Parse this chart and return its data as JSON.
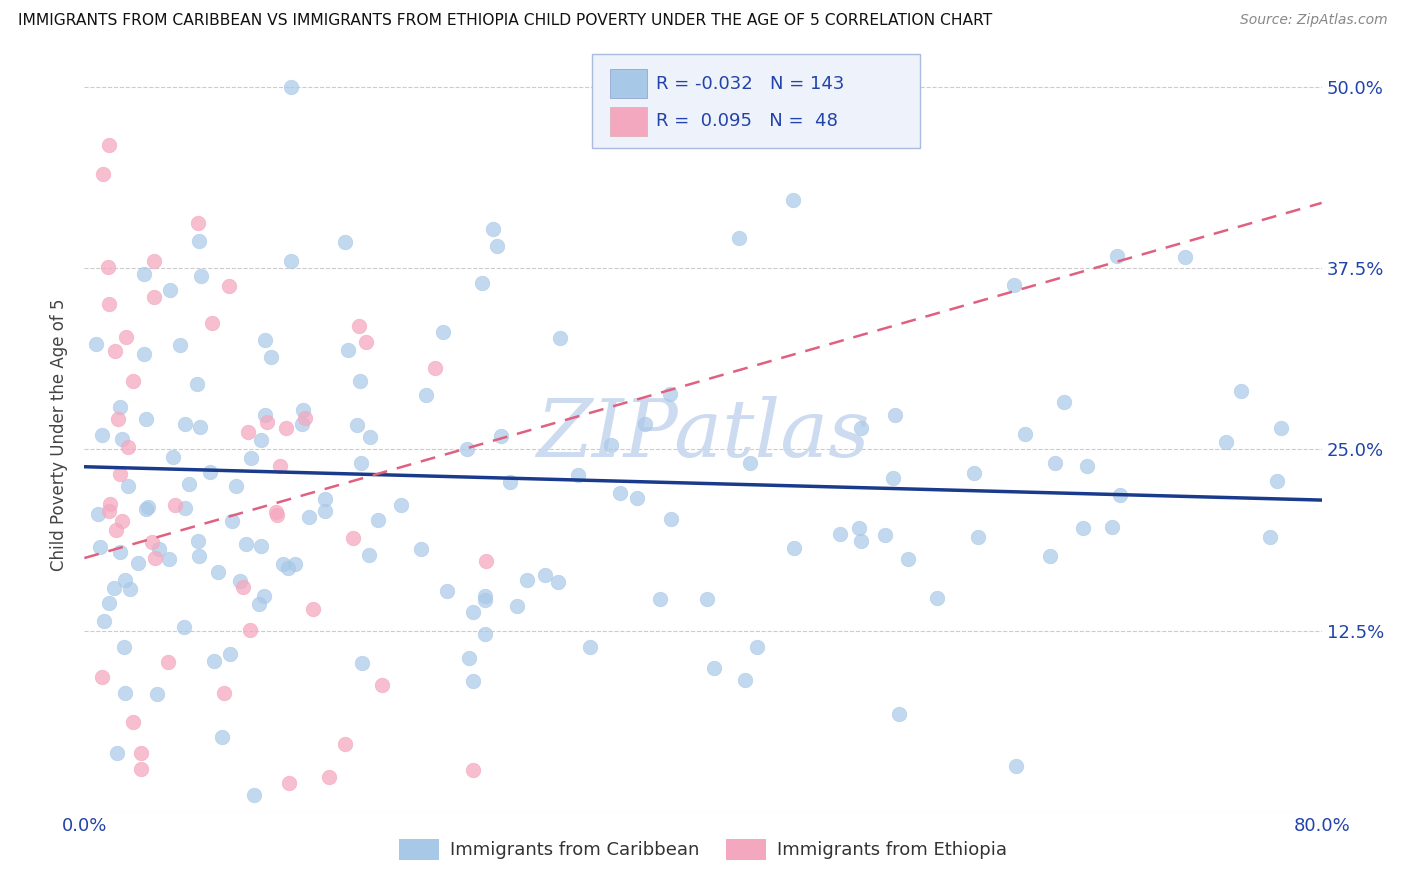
{
  "title": "IMMIGRANTS FROM CARIBBEAN VS IMMIGRANTS FROM ETHIOPIA CHILD POVERTY UNDER THE AGE OF 5 CORRELATION CHART",
  "source": "Source: ZipAtlas.com",
  "ylabel": "Child Poverty Under the Age of 5",
  "xlim": [
    0.0,
    0.8
  ],
  "ylim": [
    0.0,
    0.52
  ],
  "xticks": [
    0.0,
    0.1,
    0.2,
    0.3,
    0.4,
    0.5,
    0.6,
    0.7,
    0.8
  ],
  "xticklabels": [
    "0.0%",
    "",
    "",
    "",
    "",
    "",
    "",
    "",
    "80.0%"
  ],
  "yticks": [
    0.0,
    0.125,
    0.25,
    0.375,
    0.5
  ],
  "yticklabels_right": [
    "",
    "12.5%",
    "25.0%",
    "37.5%",
    "50.0%"
  ],
  "R_caribbean": -0.032,
  "N_caribbean": 143,
  "R_ethiopia": 0.095,
  "N_ethiopia": 48,
  "caribbean_color": "#a8c8e8",
  "ethiopia_color": "#f4a8bf",
  "trendline_caribbean_color": "#1a3a8c",
  "trendline_ethiopia_color": "#e06080",
  "watermark": "ZIPatlas",
  "watermark_color": "#c8d8f0",
  "legend_bg_color": "#eef2fa",
  "legend_border_color": "#aabbdd",
  "legend_text_color": "#2244aa",
  "scatter_size": 110,
  "trendline_caribbean_start_x": 0.0,
  "trendline_caribbean_start_y": 0.238,
  "trendline_caribbean_end_x": 0.8,
  "trendline_caribbean_end_y": 0.215,
  "trendline_ethiopia_start_x": 0.0,
  "trendline_ethiopia_start_y": 0.175,
  "trendline_ethiopia_end_x": 0.8,
  "trendline_ethiopia_end_y": 0.42
}
